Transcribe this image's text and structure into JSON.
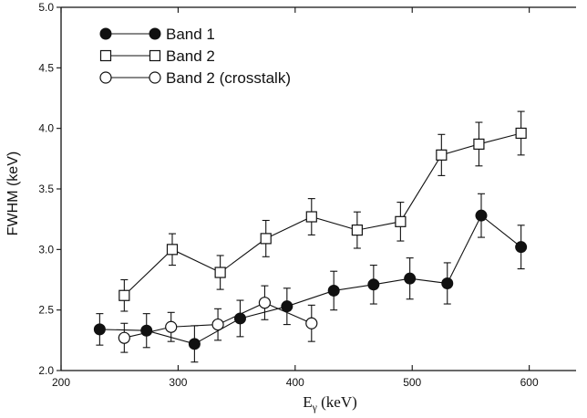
{
  "chart_data": {
    "type": "scatter",
    "xlabel": "E",
    "xlabel_sub": "γ",
    "xlabel_unit": " (keV)",
    "ylabel": "FWHM (keV)",
    "xlim": [
      200,
      640
    ],
    "ylim": [
      2.0,
      5.0
    ],
    "x_ticks": [
      200,
      300,
      400,
      500,
      600
    ],
    "x_tick_labels": [
      "200",
      "300",
      "400",
      "500",
      "600"
    ],
    "y_ticks": [
      2.0,
      2.5,
      3.0,
      3.5,
      4.0,
      4.5,
      5.0
    ],
    "y_tick_labels": [
      "2.0",
      "2.5",
      "3.0",
      "3.5",
      "4.0",
      "4.5",
      "5.0"
    ],
    "legend_position": "top-left",
    "grid": false,
    "series": [
      {
        "name": "Band 1",
        "marker": "filled-circle",
        "x": [
          233,
          273,
          314,
          353,
          393,
          433,
          467,
          498,
          530,
          559,
          593
        ],
        "y": [
          2.34,
          2.33,
          2.22,
          2.43,
          2.53,
          2.66,
          2.71,
          2.76,
          2.72,
          3.28,
          3.02
        ],
        "err": [
          0.13,
          0.14,
          0.15,
          0.15,
          0.15,
          0.16,
          0.16,
          0.17,
          0.17,
          0.18,
          0.18
        ]
      },
      {
        "name": "Band 2",
        "marker": "open-square",
        "x": [
          254,
          295,
          336,
          375,
          414,
          453,
          490,
          525,
          557,
          593
        ],
        "y": [
          2.62,
          3.0,
          2.81,
          3.09,
          3.27,
          3.16,
          3.23,
          3.78,
          3.87,
          3.96
        ],
        "err": [
          0.13,
          0.13,
          0.14,
          0.15,
          0.15,
          0.15,
          0.16,
          0.17,
          0.18,
          0.18
        ]
      },
      {
        "name": "Band 2 (crosstalk)",
        "marker": "open-circle",
        "x": [
          254,
          294,
          334,
          374,
          414
        ],
        "y": [
          2.27,
          2.36,
          2.38,
          2.56,
          2.39
        ],
        "err": [
          0.12,
          0.12,
          0.13,
          0.14,
          0.15
        ]
      }
    ]
  }
}
